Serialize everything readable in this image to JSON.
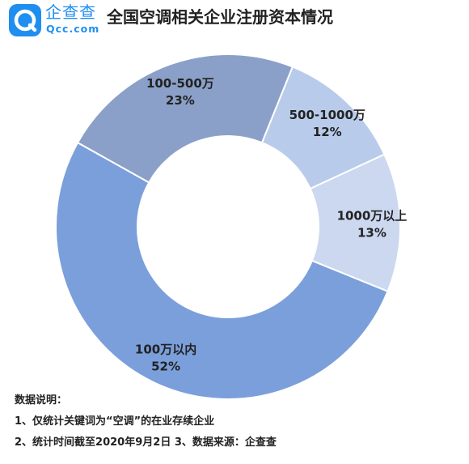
{
  "brand": {
    "name": "企查查",
    "domain": "Qcc.com",
    "color": "#1f8ef1"
  },
  "title": "全国空调相关企业注册资本情况",
  "chart_data": {
    "type": "pie",
    "donut": true,
    "title": "全国空调相关企业注册资本情况",
    "slices": [
      {
        "label": "500-1000万",
        "value": 12,
        "display": "12%",
        "color": "#b9cbea"
      },
      {
        "label": "1000万以上",
        "value": 13,
        "display": "13%",
        "color": "#cbd8ef"
      },
      {
        "label": "100万以内",
        "value": 52,
        "display": "52%",
        "color": "#7b9fdb"
      },
      {
        "label": "100-500万",
        "value": 23,
        "display": "23%",
        "color": "#8ba0c8"
      }
    ]
  },
  "notes": {
    "heading": "数据说明：",
    "line1": "1、仅统计关键词为“空调”的在业存续企业",
    "line2": "2、统计时间截至2020年9月2日 3、数据来源：企查查"
  }
}
